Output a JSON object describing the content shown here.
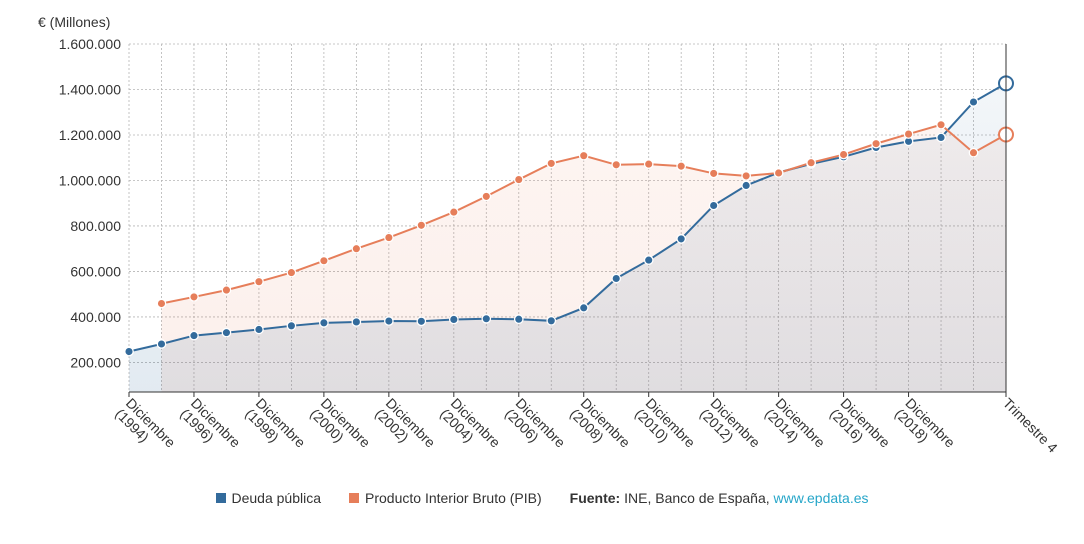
{
  "chart_data": {
    "type": "area",
    "ylabel": "€ (Millones)",
    "ylim": [
      70000,
      1600000
    ],
    "y_ticks": [
      200000,
      400000,
      600000,
      800000,
      1000000,
      1200000,
      1400000,
      1600000
    ],
    "y_tick_labels": [
      "200.000",
      "400.000",
      "600.000",
      "800.000",
      "1.000.000",
      "1.200.000",
      "1.400.000",
      "1.600.000"
    ],
    "x_tick_labels": [
      [
        "Diciembre",
        "(1994)"
      ],
      [
        "Diciembre",
        "(1996)"
      ],
      [
        "Diciembre",
        "(1998)"
      ],
      [
        "Diciembre",
        "(2000)"
      ],
      [
        "Diciembre",
        "(2002)"
      ],
      [
        "Diciembre",
        "(2004)"
      ],
      [
        "Diciembre",
        "(2006)"
      ],
      [
        "Diciembre",
        "(2008)"
      ],
      [
        "Diciembre",
        "(2010)"
      ],
      [
        "Diciembre",
        "(2012)"
      ],
      [
        "Diciembre",
        "(2014)"
      ],
      [
        "Diciembre",
        "(2016)"
      ],
      [
        "Diciembre",
        "(2018)"
      ],
      [
        "Trimestre 4"
      ]
    ],
    "grid": true,
    "legend_position": "bottom",
    "series": [
      {
        "name": "Deuda pública",
        "color": "#336b9c",
        "values": [
          248000,
          281000,
          318000,
          331000,
          345000,
          361000,
          374000,
          378000,
          382000,
          381000,
          389000,
          392000,
          390000,
          383000,
          440000,
          569000,
          650000,
          743000,
          890000,
          978000,
          1035000,
          1073000,
          1104000,
          1145000,
          1172000,
          1189000,
          1345000,
          1427000
        ]
      },
      {
        "name": "Producto Interior Bruto (PIB)",
        "color": "#e67e5a",
        "values": [
          null,
          459000,
          488000,
          518000,
          555000,
          595000,
          647000,
          700000,
          749000,
          803000,
          861000,
          930000,
          1004000,
          1075000,
          1109000,
          1069000,
          1072000,
          1063000,
          1031000,
          1020000,
          1033000,
          1078000,
          1114000,
          1162000,
          1204000,
          1245000,
          1122000,
          1202000
        ]
      }
    ]
  },
  "legend": {
    "items": [
      {
        "label": "Deuda pública",
        "color": "#336b9c"
      },
      {
        "label": "Producto Interior Bruto (PIB)",
        "color": "#e67e5a"
      }
    ],
    "source_label": "Fuente:",
    "source_text": " INE, Banco de España, ",
    "source_link": "www.epdata.es"
  }
}
